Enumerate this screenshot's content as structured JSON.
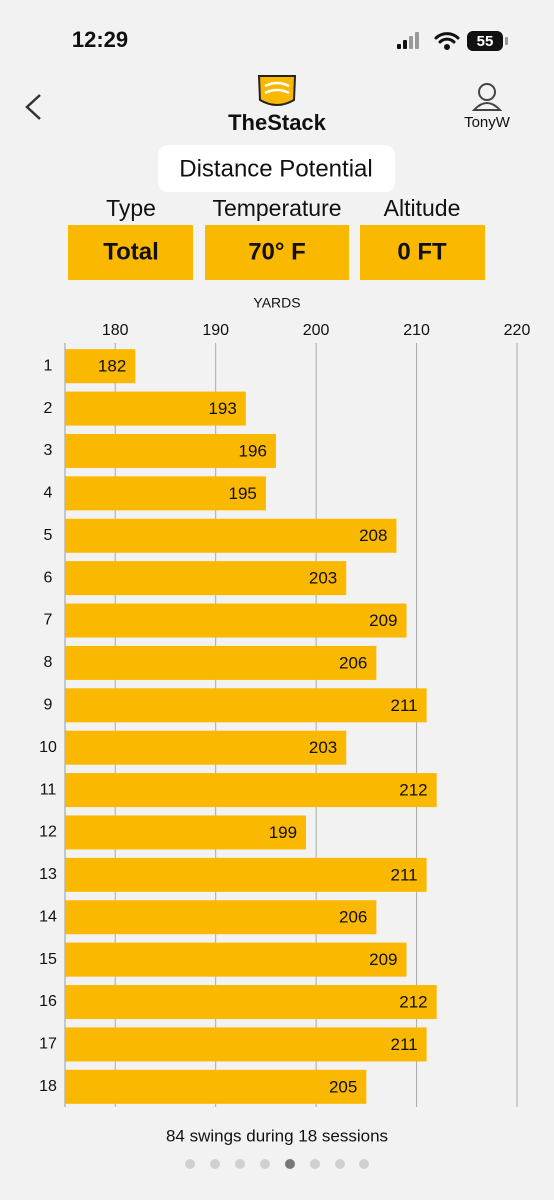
{
  "status_bar": {
    "time": "12:29",
    "battery": "55"
  },
  "header": {
    "brand": "TheStack",
    "user": "TonyW"
  },
  "title": "Distance Potential",
  "filters": [
    {
      "label": "Type",
      "value": "Total"
    },
    {
      "label": "Temperature",
      "value": "70° F"
    },
    {
      "label": "Altitude",
      "value": "0 FT"
    }
  ],
  "chart_data": {
    "type": "bar",
    "orientation": "horizontal",
    "x_label": "YARDS",
    "categories": [
      "1",
      "2",
      "3",
      "4",
      "5",
      "6",
      "7",
      "8",
      "9",
      "10",
      "11",
      "12",
      "13",
      "14",
      "15",
      "16",
      "17",
      "18"
    ],
    "values": [
      182,
      193,
      196,
      195,
      208,
      203,
      209,
      206,
      211,
      203,
      212,
      199,
      211,
      206,
      209,
      212,
      211,
      205
    ],
    "color": "#fbb800",
    "xlim": [
      175,
      220
    ],
    "xticks": [
      180,
      190,
      200,
      210,
      220
    ],
    "grid": true
  },
  "footer": "84 swings during 18 sessions"
}
